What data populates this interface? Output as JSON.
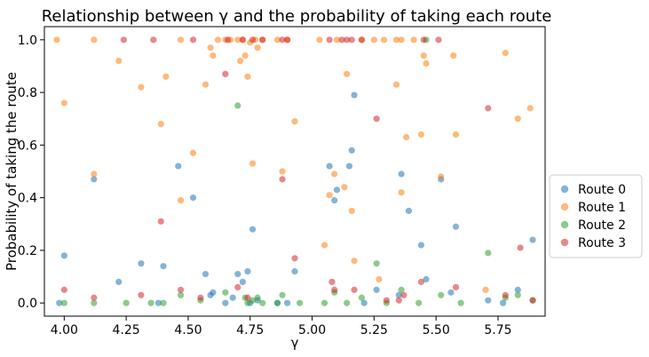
{
  "chart_data": {
    "type": "scatter",
    "title": "Relationship between γ and the probability of taking each route",
    "xlabel": "γ",
    "ylabel": "Probability of taking the route",
    "xlim": [
      3.92,
      5.94
    ],
    "ylim": [
      -0.05,
      1.05
    ],
    "xticks": [
      4.0,
      4.25,
      4.5,
      4.75,
      5.0,
      5.25,
      5.5,
      5.75
    ],
    "xtick_labels": [
      "4.00",
      "4.25",
      "4.50",
      "4.75",
      "5.00",
      "5.25",
      "5.50",
      "5.75"
    ],
    "yticks": [
      0.0,
      0.2,
      0.4,
      0.6,
      0.8,
      1.0
    ],
    "ytick_labels": [
      "0.0",
      "0.2",
      "0.4",
      "0.6",
      "0.8",
      "1.0"
    ],
    "grid": false,
    "legend_placement": "center-right outside",
    "marker_alpha": 0.55,
    "series": [
      {
        "name": "Route 0",
        "color": "#1f77b4",
        "points": [
          [
            3.98,
            0.0
          ],
          [
            4.0,
            0.18
          ],
          [
            4.12,
            0.47
          ],
          [
            4.22,
            0.08
          ],
          [
            4.31,
            0.15
          ],
          [
            4.38,
            0.0
          ],
          [
            4.4,
            0.14
          ],
          [
            4.46,
            0.52
          ],
          [
            4.52,
            0.4
          ],
          [
            4.57,
            0.11
          ],
          [
            4.59,
            0.03
          ],
          [
            4.6,
            0.04
          ],
          [
            4.65,
            0.0
          ],
          [
            4.68,
            0.02
          ],
          [
            4.7,
            0.11
          ],
          [
            4.72,
            0.08
          ],
          [
            4.74,
            0.12
          ],
          [
            4.75,
            0.0
          ],
          [
            4.76,
            0.28
          ],
          [
            4.78,
            0.01
          ],
          [
            4.86,
            0.0
          ],
          [
            4.9,
            0.0
          ],
          [
            4.93,
            0.12
          ],
          [
            5.07,
            0.52
          ],
          [
            5.09,
            0.39
          ],
          [
            5.1,
            0.43
          ],
          [
            5.15,
            0.52
          ],
          [
            5.16,
            0.58
          ],
          [
            5.17,
            0.79
          ],
          [
            5.21,
            0.0
          ],
          [
            5.26,
            0.05
          ],
          [
            5.35,
            0.03
          ],
          [
            5.36,
            0.49
          ],
          [
            5.39,
            0.35
          ],
          [
            5.44,
            0.22
          ],
          [
            5.46,
            0.09
          ],
          [
            5.52,
            0.47
          ],
          [
            5.56,
            0.04
          ],
          [
            5.58,
            0.29
          ],
          [
            5.71,
            0.01
          ],
          [
            5.77,
            0.0
          ],
          [
            5.83,
            0.05
          ],
          [
            5.89,
            0.24
          ]
        ]
      },
      {
        "name": "Route 1",
        "color": "#ff7f0e",
        "points": [
          [
            3.97,
            1.0
          ],
          [
            4.0,
            0.76
          ],
          [
            4.12,
            0.49
          ],
          [
            4.12,
            1.0
          ],
          [
            4.22,
            0.92
          ],
          [
            4.31,
            0.82
          ],
          [
            4.39,
            0.68
          ],
          [
            4.41,
            0.86
          ],
          [
            4.47,
            0.39
          ],
          [
            4.47,
            1.0
          ],
          [
            4.52,
            0.57
          ],
          [
            4.57,
            0.83
          ],
          [
            4.59,
            0.97
          ],
          [
            4.6,
            0.94
          ],
          [
            4.62,
            1.0
          ],
          [
            4.65,
            1.0
          ],
          [
            4.67,
            1.0
          ],
          [
            4.7,
            1.0
          ],
          [
            4.71,
            0.92
          ],
          [
            4.72,
            1.0
          ],
          [
            4.73,
            0.94
          ],
          [
            4.74,
            0.86
          ],
          [
            4.75,
            0.99
          ],
          [
            4.76,
            0.53
          ],
          [
            4.77,
            1.0
          ],
          [
            4.78,
            0.97
          ],
          [
            4.8,
            1.0
          ],
          [
            4.86,
            1.0
          ],
          [
            4.88,
            0.5
          ],
          [
            4.9,
            1.0
          ],
          [
            4.93,
            0.69
          ],
          [
            5.03,
            1.0
          ],
          [
            5.05,
            0.22
          ],
          [
            5.07,
            0.41
          ],
          [
            5.09,
            0.49
          ],
          [
            5.1,
            1.0
          ],
          [
            5.13,
            0.44
          ],
          [
            5.14,
            0.87
          ],
          [
            5.16,
            0.35
          ],
          [
            5.17,
            0.16
          ],
          [
            5.2,
            1.0
          ],
          [
            5.25,
            1.0
          ],
          [
            5.27,
            0.09
          ],
          [
            5.29,
            1.0
          ],
          [
            5.34,
            1.0
          ],
          [
            5.34,
            0.83
          ],
          [
            5.36,
            0.42
          ],
          [
            5.38,
            0.63
          ],
          [
            5.41,
            1.0
          ],
          [
            5.44,
            0.64
          ],
          [
            5.45,
            0.94
          ],
          [
            5.46,
            0.91
          ],
          [
            5.52,
            0.48
          ],
          [
            5.57,
            0.94
          ],
          [
            5.58,
            0.64
          ],
          [
            5.7,
            0.05
          ],
          [
            5.78,
            0.95
          ],
          [
            5.83,
            0.7
          ],
          [
            5.88,
            0.74
          ],
          [
            5.36,
            1.0
          ]
        ]
      },
      {
        "name": "Route 2",
        "color": "#2ca02c",
        "points": [
          [
            4.0,
            0.0
          ],
          [
            4.12,
            0.0
          ],
          [
            4.25,
            0.0
          ],
          [
            4.35,
            0.0
          ],
          [
            4.4,
            0.0
          ],
          [
            4.47,
            0.03
          ],
          [
            4.55,
            0.01
          ],
          [
            4.65,
            0.04
          ],
          [
            4.7,
            0.75
          ],
          [
            4.73,
            0.02
          ],
          [
            4.74,
            0.0
          ],
          [
            4.76,
            0.01
          ],
          [
            4.78,
            0.02
          ],
          [
            4.8,
            0.0
          ],
          [
            4.86,
            0.0
          ],
          [
            4.88,
            0.03
          ],
          [
            4.95,
            0.0
          ],
          [
            5.05,
            0.0
          ],
          [
            5.09,
            0.04
          ],
          [
            5.14,
            0.0
          ],
          [
            5.2,
            0.02
          ],
          [
            5.26,
            0.15
          ],
          [
            5.3,
            0.0
          ],
          [
            5.36,
            0.05
          ],
          [
            5.43,
            0.0
          ],
          [
            5.46,
            1.0
          ],
          [
            5.52,
            0.03
          ],
          [
            5.6,
            0.0
          ],
          [
            5.71,
            0.19
          ],
          [
            5.78,
            0.02
          ],
          [
            5.83,
            0.03
          ],
          [
            5.89,
            0.01
          ]
        ]
      },
      {
        "name": "Route 3",
        "color": "#d62728",
        "points": [
          [
            4.0,
            0.05
          ],
          [
            4.12,
            0.02
          ],
          [
            4.24,
            1.0
          ],
          [
            4.31,
            0.03
          ],
          [
            4.36,
            1.0
          ],
          [
            4.39,
            0.31
          ],
          [
            4.47,
            0.05
          ],
          [
            4.52,
            1.0
          ],
          [
            4.55,
            0.02
          ],
          [
            4.65,
            0.87
          ],
          [
            4.66,
            1.0
          ],
          [
            4.7,
            0.06
          ],
          [
            4.72,
            1.0
          ],
          [
            4.74,
            0.02
          ],
          [
            4.76,
            1.0
          ],
          [
            4.8,
            1.0
          ],
          [
            4.88,
            1.0
          ],
          [
            4.88,
            0.47
          ],
          [
            4.9,
            1.0
          ],
          [
            4.93,
            0.17
          ],
          [
            5.07,
            1.0
          ],
          [
            5.08,
            0.08
          ],
          [
            5.09,
            0.05
          ],
          [
            5.12,
            1.0
          ],
          [
            5.14,
            1.0
          ],
          [
            5.16,
            1.0
          ],
          [
            5.17,
            0.05
          ],
          [
            5.2,
            1.0
          ],
          [
            5.26,
            0.7
          ],
          [
            5.3,
            0.01
          ],
          [
            5.35,
            0.01
          ],
          [
            5.37,
            0.03
          ],
          [
            5.44,
            0.08
          ],
          [
            5.45,
            1.0
          ],
          [
            5.51,
            1.0
          ],
          [
            5.58,
            0.06
          ],
          [
            5.71,
            0.74
          ],
          [
            5.78,
            0.03
          ],
          [
            5.84,
            0.21
          ],
          [
            5.89,
            0.01
          ]
        ]
      }
    ]
  }
}
